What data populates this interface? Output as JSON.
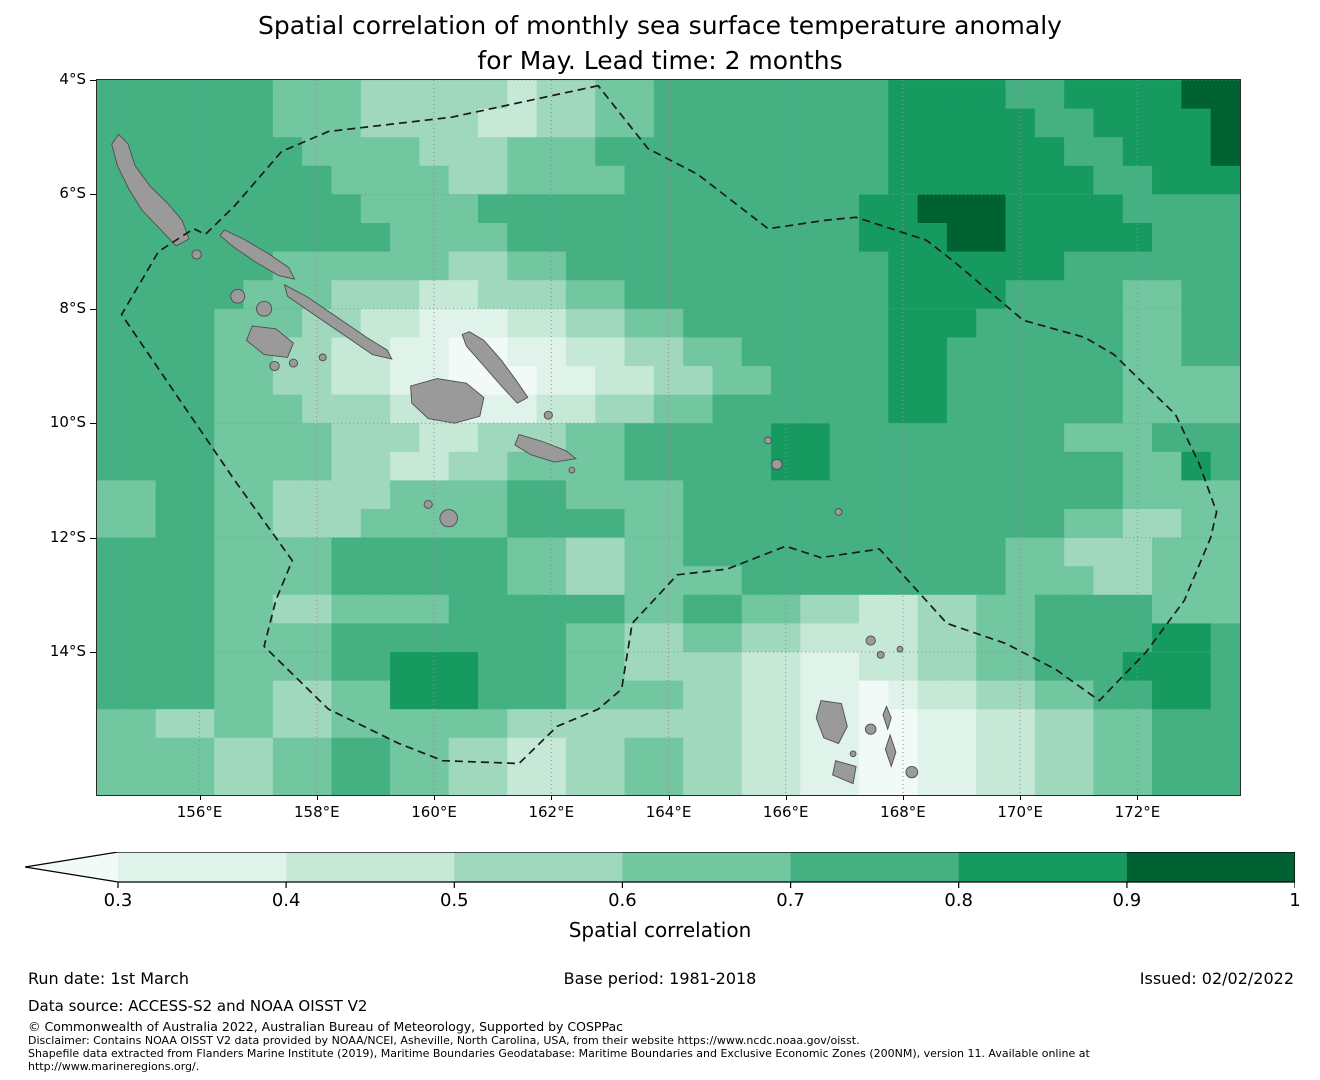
{
  "title": {
    "line1": "Spatial correlation of monthly sea surface temperature anomaly",
    "line2": "for May. Lead time: 2 months"
  },
  "chart_data": {
    "type": "heatmap",
    "title": "Spatial correlation of monthly sea surface temperature anomaly for May. Lead time: 2 months",
    "lon_range": [
      154.25,
      173.75
    ],
    "lat_range": [
      4,
      16.5
    ],
    "cell_size_deg": 0.5,
    "value_bins": [
      "<0.3",
      "0.3-0.4",
      "0.4-0.5",
      "0.5-0.6",
      "0.6-0.7",
      "0.7-0.8",
      "0.8-0.9",
      "0.9-1.0"
    ],
    "level_colors": [
      "#f2faf7",
      "#e0f3eb",
      "#c6e8d7",
      "#9fd8bd",
      "#72c6a0",
      "#45b183",
      "#179a60",
      "#006233"
    ],
    "grid_rows": [
      "555555444333332334455555555666655666677",
      "555555444333322334455555555666665566667",
      "555555544443334445555555555666666556667",
      "555555554444334444555555555666666655666",
      "555555555444455555555555556677766665555",
      "555555555544445555555555556667766666555",
      "555555444444334455555555555666666555555",
      "555554443332233344555555555666655554455",
      "555544433221112233445555555666555554455",
      "555544332211001122334455555665555554455",
      "555544332211000112233445555665555554444",
      "555544433322111223344555555665555554444",
      "555544443332233344555556655555555444555",
      "555544443322334444555556655555555554465",
      "445544333344445544445555555555555554444",
      "445544333444445555445555555555555443344",
      "555544445555554433445555555555544333444",
      "555544445555554433444455555555544433444",
      "555544334444555555445544332233445555444",
      "555544445555555544334433222233445555665",
      "555544445566655544333322112233445556665",
      "555544334466655544443322110122334455665",
      "443344334444443333333322110011223344555",
      "444433445544332233443322110011223344555",
      "444433445544332233443322110011223344555"
    ],
    "x_ticks": [
      {
        "value": 156,
        "label": "156°E"
      },
      {
        "value": 158,
        "label": "158°E"
      },
      {
        "value": 160,
        "label": "160°E"
      },
      {
        "value": 162,
        "label": "162°E"
      },
      {
        "value": 164,
        "label": "164°E"
      },
      {
        "value": 166,
        "label": "166°E"
      },
      {
        "value": 168,
        "label": "168°E"
      },
      {
        "value": 170,
        "label": "170°E"
      },
      {
        "value": 172,
        "label": "172°E"
      }
    ],
    "y_ticks": [
      {
        "value": 4,
        "label": "4°S"
      },
      {
        "value": 6,
        "label": "6°S"
      },
      {
        "value": 8,
        "label": "8°S"
      },
      {
        "value": 10,
        "label": "10°S"
      },
      {
        "value": 12,
        "label": "12°S"
      },
      {
        "value": 14,
        "label": "14°S"
      }
    ],
    "gridline_color": "#8f8f8f",
    "islands": {
      "fill": "#9a9a9a",
      "stroke": "#4d4d4d",
      "polygons": [
        [
          [
            154.62,
            4.95
          ],
          [
            154.78,
            5.12
          ],
          [
            154.9,
            5.5
          ],
          [
            155.15,
            5.85
          ],
          [
            155.45,
            6.15
          ],
          [
            155.7,
            6.45
          ],
          [
            155.82,
            6.78
          ],
          [
            155.6,
            6.9
          ],
          [
            155.32,
            6.6
          ],
          [
            155.02,
            6.28
          ],
          [
            154.8,
            5.92
          ],
          [
            154.6,
            5.5
          ],
          [
            154.5,
            5.12
          ]
        ],
        [
          [
            156.42,
            6.62
          ],
          [
            156.75,
            6.78
          ],
          [
            157.15,
            7.02
          ],
          [
            157.52,
            7.28
          ],
          [
            157.62,
            7.48
          ],
          [
            157.35,
            7.42
          ],
          [
            156.95,
            7.18
          ],
          [
            156.58,
            6.92
          ],
          [
            156.35,
            6.72
          ]
        ],
        [
          [
            157.45,
            7.58
          ],
          [
            157.85,
            7.8
          ],
          [
            158.35,
            8.15
          ],
          [
            158.85,
            8.5
          ],
          [
            159.2,
            8.72
          ],
          [
            159.28,
            8.88
          ],
          [
            158.95,
            8.8
          ],
          [
            158.45,
            8.45
          ],
          [
            157.95,
            8.1
          ],
          [
            157.5,
            7.78
          ]
        ],
        [
          [
            156.9,
            8.3
          ],
          [
            157.3,
            8.35
          ],
          [
            157.6,
            8.6
          ],
          [
            157.5,
            8.85
          ],
          [
            157.1,
            8.8
          ],
          [
            156.8,
            8.55
          ]
        ],
        [
          [
            159.6,
            9.35
          ],
          [
            160.05,
            9.22
          ],
          [
            160.55,
            9.3
          ],
          [
            160.85,
            9.55
          ],
          [
            160.78,
            9.88
          ],
          [
            160.35,
            10.0
          ],
          [
            159.9,
            9.92
          ],
          [
            159.62,
            9.65
          ]
        ],
        [
          [
            160.6,
            8.4
          ],
          [
            160.85,
            8.55
          ],
          [
            161.15,
            8.9
          ],
          [
            161.4,
            9.25
          ],
          [
            161.6,
            9.55
          ],
          [
            161.42,
            9.65
          ],
          [
            161.15,
            9.35
          ],
          [
            160.85,
            9.0
          ],
          [
            160.55,
            8.65
          ],
          [
            160.48,
            8.45
          ]
        ],
        [
          [
            161.45,
            10.2
          ],
          [
            161.85,
            10.32
          ],
          [
            162.25,
            10.48
          ],
          [
            162.42,
            10.62
          ],
          [
            162.05,
            10.68
          ],
          [
            161.65,
            10.55
          ],
          [
            161.38,
            10.38
          ]
        ],
        [
          [
            166.6,
            14.85
          ],
          [
            166.95,
            14.9
          ],
          [
            167.05,
            15.3
          ],
          [
            166.9,
            15.6
          ],
          [
            166.65,
            15.5
          ],
          [
            166.52,
            15.15
          ]
        ],
        [
          [
            166.85,
            15.9
          ],
          [
            167.2,
            16.0
          ],
          [
            167.15,
            16.3
          ],
          [
            166.8,
            16.15
          ]
        ],
        [
          [
            167.72,
            14.95
          ],
          [
            167.8,
            15.15
          ],
          [
            167.74,
            15.35
          ],
          [
            167.66,
            15.1
          ]
        ],
        [
          [
            167.78,
            15.45
          ],
          [
            167.88,
            15.75
          ],
          [
            167.8,
            16.0
          ],
          [
            167.7,
            15.7
          ]
        ]
      ],
      "dots": [
        [
          155.95,
          7.05,
          0.08
        ],
        [
          156.65,
          7.78,
          0.12
        ],
        [
          157.1,
          8.0,
          0.13
        ],
        [
          157.28,
          9.0,
          0.08
        ],
        [
          157.6,
          8.95,
          0.07
        ],
        [
          158.1,
          8.85,
          0.06
        ],
        [
          159.9,
          11.42,
          0.07
        ],
        [
          160.25,
          11.66,
          0.15
        ],
        [
          161.95,
          9.86,
          0.07
        ],
        [
          162.35,
          10.82,
          0.05
        ],
        [
          165.7,
          10.3,
          0.06
        ],
        [
          165.85,
          10.72,
          0.09
        ],
        [
          166.9,
          11.55,
          0.06
        ],
        [
          167.45,
          13.8,
          0.08
        ],
        [
          167.62,
          14.05,
          0.06
        ],
        [
          167.95,
          13.95,
          0.05
        ],
        [
          167.45,
          15.35,
          0.09
        ],
        [
          168.15,
          16.1,
          0.1
        ],
        [
          167.15,
          15.78,
          0.05
        ]
      ]
    },
    "eez_boundary": {
      "style": "dashed",
      "color": "#1a1a1a",
      "points": [
        [
          162.8,
          4.1
        ],
        [
          160.3,
          4.65
        ],
        [
          158.2,
          4.9
        ],
        [
          157.4,
          5.25
        ],
        [
          156.6,
          6.2
        ],
        [
          156.1,
          6.7
        ],
        [
          155.9,
          6.6
        ],
        [
          155.3,
          7.0
        ],
        [
          154.67,
          8.1
        ],
        [
          155.6,
          9.5
        ],
        [
          156.6,
          11.0
        ],
        [
          157.58,
          12.4
        ],
        [
          157.3,
          13.1
        ],
        [
          157.1,
          13.9
        ],
        [
          158.2,
          15.0
        ],
        [
          159.4,
          15.6
        ],
        [
          160.15,
          15.9
        ],
        [
          161.45,
          15.95
        ],
        [
          162.1,
          15.3
        ],
        [
          162.8,
          15.0
        ],
        [
          163.2,
          14.65
        ],
        [
          163.38,
          13.5
        ],
        [
          164.15,
          12.65
        ],
        [
          165.0,
          12.55
        ],
        [
          166.0,
          12.15
        ],
        [
          166.6,
          12.35
        ],
        [
          167.6,
          12.2
        ],
        [
          168.75,
          13.5
        ],
        [
          169.75,
          13.85
        ],
        [
          170.6,
          14.3
        ],
        [
          171.35,
          14.85
        ],
        [
          172.15,
          14.0
        ],
        [
          172.8,
          13.1
        ],
        [
          173.25,
          12.0
        ],
        [
          173.35,
          11.55
        ],
        [
          173.05,
          10.7
        ],
        [
          172.65,
          9.85
        ],
        [
          171.6,
          8.8
        ],
        [
          171.1,
          8.5
        ],
        [
          170.05,
          8.2
        ],
        [
          168.9,
          7.2
        ],
        [
          168.4,
          6.8
        ],
        [
          167.2,
          6.4
        ],
        [
          166.7,
          6.45
        ],
        [
          165.7,
          6.6
        ],
        [
          164.5,
          5.65
        ],
        [
          163.65,
          5.2
        ]
      ]
    }
  },
  "colorbar": {
    "ticks": [
      "0.3",
      "0.4",
      "0.5",
      "0.6",
      "0.7",
      "0.8",
      "0.9",
      "1"
    ],
    "label": "Spatial correlation"
  },
  "footer": {
    "run_date": "Run date: 1st March",
    "base_period": "Base period: 1981-2018",
    "issued": "Issued: 02/02/2022",
    "data_source": "Data source: ACCESS-S2 and NOAA OISST V2",
    "copyright": "© Commonwealth of Australia 2022, Australian Bureau of Meteorology, Supported by COSPPac",
    "disclaimer": "Disclaimer: Contains NOAA OISST V2 data provided by NOAA/NCEI, Asheville, North Carolina, USA, from their website https://www.ncdc.noaa.gov/oisst.",
    "shapefile": "Shapefile data extracted from Flanders Marine Institute (2019), Maritime Boundaries Geodatabase: Maritime Boundaries and Exclusive Economic Zones (200NM), version 11. Available online at",
    "shapefile_url": "http://www.marineregions.org/."
  }
}
